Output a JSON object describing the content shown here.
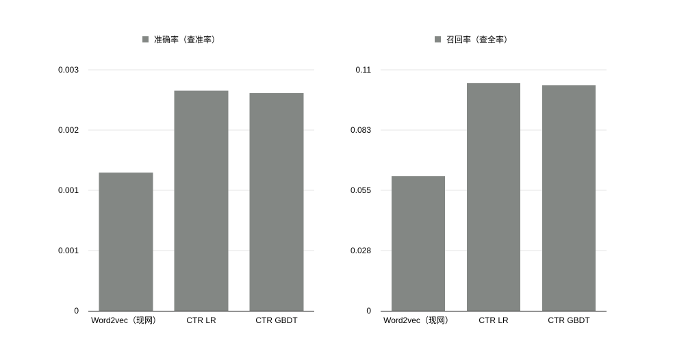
{
  "chart_data": [
    {
      "type": "bar",
      "legend_position": "top",
      "grid": true,
      "color": "#838784",
      "series": [
        {
          "name": "准确率（查准率）",
          "values": [
            0.00172,
            0.00274,
            0.00271
          ]
        }
      ],
      "categories": [
        "Word2vec（现网）",
        "CTR LR",
        "CTR GBDT"
      ],
      "ylim": [
        0,
        0.003
      ],
      "yticks": [
        "0",
        "0.001",
        "0.001",
        "0.002",
        "0.003"
      ]
    },
    {
      "type": "bar",
      "legend_position": "top",
      "grid": true,
      "color": "#838784",
      "series": [
        {
          "name": "召回率（查全率）",
          "values": [
            0.0615,
            0.104,
            0.103
          ]
        }
      ],
      "categories": [
        "Word2vec（现网）",
        "CTR LR",
        "CTR GBDT"
      ],
      "ylim": [
        0,
        0.11
      ],
      "yticks": [
        "0",
        "0.028",
        "0.055",
        "0.083",
        "0.11"
      ]
    }
  ]
}
